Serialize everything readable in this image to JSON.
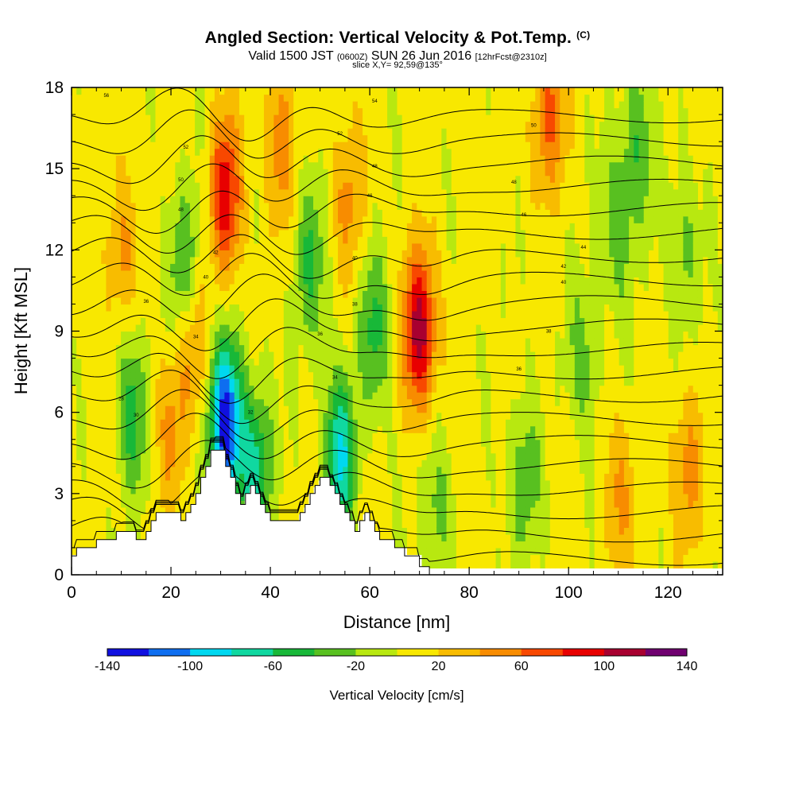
{
  "title": "Angled Section: Vertical Velocity & Pot.Temp.",
  "title_suffix": "(C)",
  "subtitle_main": "Valid 1500 JST",
  "subtitle_utc": "(0600Z)",
  "subtitle_date": "SUN 26 Jun 2016",
  "subtitle_run": "[12hrFcst@2310z]",
  "slice_label": "slice X,Y= 92,59@135°",
  "chart_data": {
    "type": "heatmap",
    "xlabel": "Distance [nm]",
    "ylabel": "Height [Kft MSL]",
    "xlim": [
      0,
      131
    ],
    "ylim": [
      0,
      18
    ],
    "x_ticks": [
      "0",
      "20",
      "40",
      "60",
      "80",
      "100",
      "120"
    ],
    "y_ticks": [
      "0",
      "3",
      "6",
      "9",
      "12",
      "15",
      "18"
    ],
    "colorbar": {
      "title": "Vertical Velocity [cm/s]",
      "tick_labels": [
        "-140",
        "-100",
        "-60",
        "-20",
        "20",
        "60",
        "100",
        "140"
      ],
      "levels": [
        -140,
        -120,
        -100,
        -80,
        -60,
        -40,
        -20,
        0,
        20,
        40,
        60,
        80,
        100,
        120,
        140
      ],
      "colors": [
        "#1010e0",
        "#0e6ef0",
        "#00d8f0",
        "#10d8a0",
        "#18b838",
        "#58c020",
        "#b8e810",
        "#f8e800",
        "#f8bc00",
        "#f88c00",
        "#f84800",
        "#e80000",
        "#a80030",
        "#700070"
      ]
    },
    "terrain_profile": [
      [
        0,
        0.7
      ],
      [
        1,
        0.7
      ],
      [
        1,
        1.0
      ],
      [
        5,
        1.0
      ],
      [
        5,
        1.3
      ],
      [
        9,
        1.3
      ],
      [
        9,
        1.6
      ],
      [
        13,
        1.6
      ],
      [
        13,
        1.3
      ],
      [
        15,
        1.3
      ],
      [
        15,
        1.6
      ],
      [
        16,
        1.6
      ],
      [
        16,
        2.0
      ],
      [
        17,
        2.0
      ],
      [
        17,
        2.3
      ],
      [
        22,
        2.3
      ],
      [
        22,
        2.0
      ],
      [
        23,
        2.0
      ],
      [
        23,
        2.3
      ],
      [
        24,
        2.3
      ],
      [
        24,
        2.6
      ],
      [
        25,
        2.6
      ],
      [
        25,
        3.0
      ],
      [
        26,
        3.0
      ],
      [
        26,
        3.6
      ],
      [
        27,
        3.6
      ],
      [
        27,
        4.0
      ],
      [
        28,
        4.0
      ],
      [
        28,
        4.6
      ],
      [
        31,
        4.6
      ],
      [
        31,
        4.0
      ],
      [
        32,
        4.0
      ],
      [
        32,
        3.6
      ],
      [
        33,
        3.6
      ],
      [
        33,
        3.0
      ],
      [
        34,
        3.0
      ],
      [
        34,
        2.6
      ],
      [
        35,
        2.6
      ],
      [
        35,
        3.0
      ],
      [
        36,
        3.0
      ],
      [
        36,
        3.3
      ],
      [
        37,
        3.3
      ],
      [
        37,
        3.0
      ],
      [
        38,
        3.0
      ],
      [
        38,
        2.6
      ],
      [
        39,
        2.6
      ],
      [
        39,
        2.3
      ],
      [
        40,
        2.3
      ],
      [
        40,
        2.0
      ],
      [
        46,
        2.0
      ],
      [
        46,
        2.3
      ],
      [
        47,
        2.3
      ],
      [
        47,
        2.6
      ],
      [
        48,
        2.6
      ],
      [
        48,
        3.0
      ],
      [
        49,
        3.0
      ],
      [
        49,
        3.3
      ],
      [
        50,
        3.3
      ],
      [
        50,
        3.6
      ],
      [
        52,
        3.6
      ],
      [
        52,
        3.3
      ],
      [
        53,
        3.3
      ],
      [
        53,
        3.0
      ],
      [
        54,
        3.0
      ],
      [
        54,
        2.6
      ],
      [
        55,
        2.6
      ],
      [
        55,
        2.3
      ],
      [
        56,
        2.3
      ],
      [
        56,
        2.0
      ],
      [
        57,
        2.0
      ],
      [
        57,
        1.6
      ],
      [
        58,
        1.6
      ],
      [
        58,
        2.0
      ],
      [
        59,
        2.0
      ],
      [
        59,
        2.3
      ],
      [
        60,
        2.3
      ],
      [
        60,
        2.0
      ],
      [
        61,
        2.0
      ],
      [
        61,
        1.6
      ],
      [
        62,
        1.6
      ],
      [
        62,
        1.3
      ],
      [
        65,
        1.3
      ],
      [
        65,
        1.0
      ],
      [
        67,
        1.0
      ],
      [
        67,
        0.7
      ],
      [
        70,
        0.7
      ],
      [
        70,
        0.3
      ],
      [
        72,
        0.3
      ],
      [
        72,
        0
      ]
    ],
    "updraft_cores": [
      {
        "x": 70,
        "y": 9.0,
        "w": 110
      },
      {
        "x": 31,
        "y": 14.0,
        "w": 85
      },
      {
        "x": 24,
        "y": 9.0,
        "w": 55
      },
      {
        "x": 96,
        "y": 17.0,
        "w": 60
      },
      {
        "x": 10,
        "y": 12.0,
        "w": 40
      },
      {
        "x": 42,
        "y": 16.0,
        "w": 45
      },
      {
        "x": 56,
        "y": 14.0,
        "w": 40
      },
      {
        "x": 20,
        "y": 5.5,
        "w": 35
      },
      {
        "x": 110,
        "y": 3.0,
        "w": 35
      },
      {
        "x": 124,
        "y": 4.0,
        "w": 45
      }
    ],
    "downdraft_cores": [
      {
        "x": 31,
        "y": 5.5,
        "w": -140
      },
      {
        "x": 54,
        "y": 4.3,
        "w": -85
      },
      {
        "x": 37,
        "y": 4.0,
        "w": -75
      },
      {
        "x": 23,
        "y": 11.0,
        "w": -65
      },
      {
        "x": 12,
        "y": 6.0,
        "w": -55
      },
      {
        "x": 61,
        "y": 9.0,
        "w": -50
      },
      {
        "x": 48,
        "y": 11.5,
        "w": -45
      },
      {
        "x": 110,
        "y": 13.0,
        "w": -40
      },
      {
        "x": 123,
        "y": 12.0,
        "w": -35
      },
      {
        "x": 114,
        "y": 16.0,
        "w": -40
      },
      {
        "x": 73,
        "y": 2.5,
        "w": -35
      },
      {
        "x": 91,
        "y": 3.5,
        "w": -40
      },
      {
        "x": 103,
        "y": 8.0,
        "w": -35
      }
    ],
    "theta_levels": [
      24,
      26,
      28,
      30,
      32,
      34,
      36,
      38,
      40,
      42,
      44,
      46,
      48,
      50,
      52,
      54,
      56,
      58,
      60,
      62
    ],
    "theta_contour_labels": [
      {
        "x": 10,
        "y": 6.5,
        "text": "28"
      },
      {
        "x": 13,
        "y": 5.9,
        "text": "30"
      },
      {
        "x": 15,
        "y": 10.1,
        "text": "36"
      },
      {
        "x": 25,
        "y": 8.8,
        "text": "34"
      },
      {
        "x": 27,
        "y": 11.0,
        "text": "40"
      },
      {
        "x": 29,
        "y": 11.9,
        "text": "42"
      },
      {
        "x": 22,
        "y": 13.5,
        "text": "48"
      },
      {
        "x": 22,
        "y": 14.6,
        "text": "50"
      },
      {
        "x": 23,
        "y": 15.8,
        "text": "52"
      },
      {
        "x": 7,
        "y": 17.7,
        "text": "56"
      },
      {
        "x": 36,
        "y": 6.0,
        "text": "32"
      },
      {
        "x": 53,
        "y": 7.3,
        "text": "34"
      },
      {
        "x": 50,
        "y": 8.9,
        "text": "36"
      },
      {
        "x": 57,
        "y": 10.0,
        "text": "38"
      },
      {
        "x": 57,
        "y": 11.7,
        "text": "40"
      },
      {
        "x": 60,
        "y": 14.0,
        "text": "46"
      },
      {
        "x": 61,
        "y": 15.1,
        "text": "48"
      },
      {
        "x": 54,
        "y": 16.3,
        "text": "52"
      },
      {
        "x": 61,
        "y": 17.5,
        "text": "54"
      },
      {
        "x": 90,
        "y": 7.6,
        "text": "36"
      },
      {
        "x": 96,
        "y": 9.0,
        "text": "38"
      },
      {
        "x": 99,
        "y": 10.8,
        "text": "40"
      },
      {
        "x": 99,
        "y": 11.4,
        "text": "42"
      },
      {
        "x": 103,
        "y": 12.1,
        "text": "44"
      },
      {
        "x": 91,
        "y": 13.3,
        "text": "46"
      },
      {
        "x": 89,
        "y": 14.5,
        "text": "48"
      },
      {
        "x": 93,
        "y": 16.6,
        "text": "50"
      }
    ]
  }
}
